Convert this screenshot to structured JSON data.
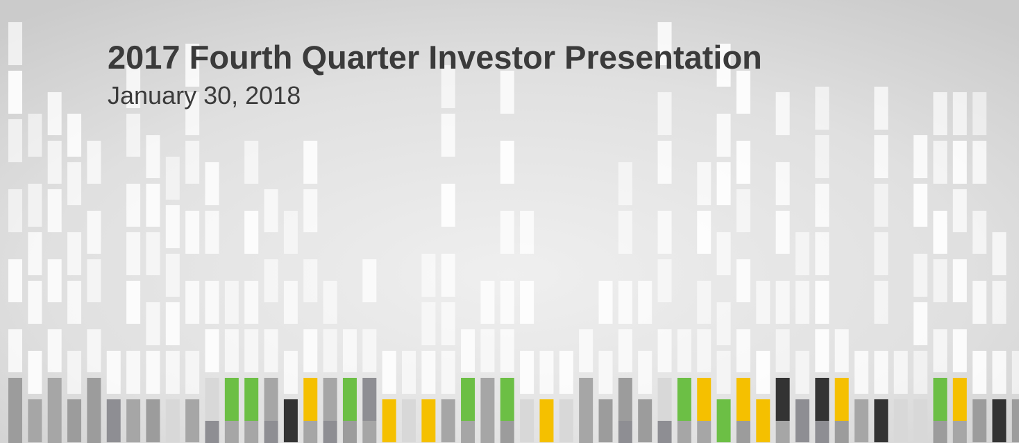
{
  "slide": {
    "title": "2017 Fourth Quarter Investor Presentation",
    "subtitle": "January 30, 2018"
  }
}
